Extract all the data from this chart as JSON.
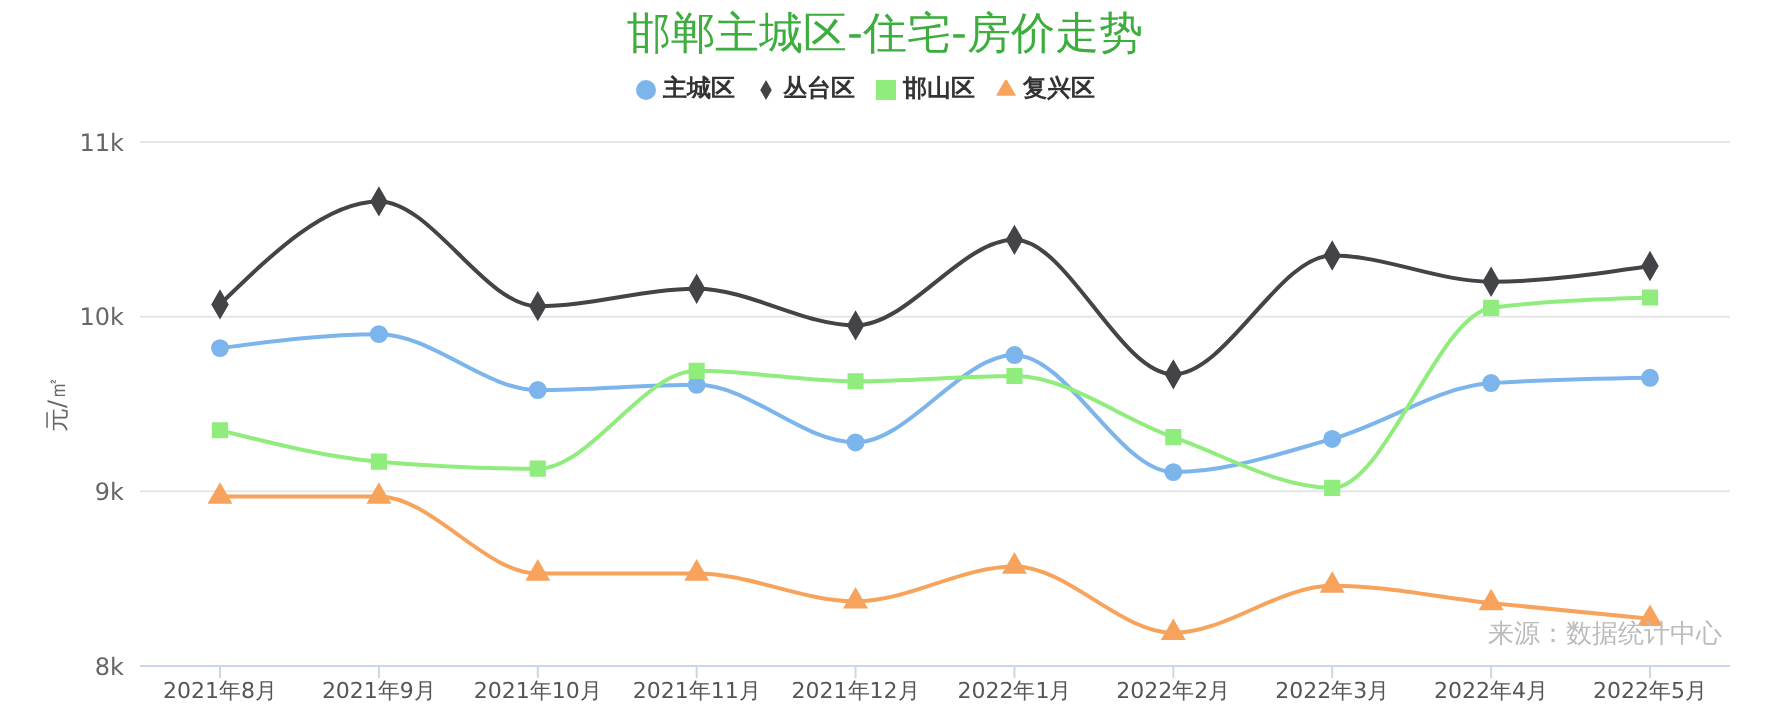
{
  "chart_data": {
    "type": "line",
    "title": "邯郸主城区-住宅-房价走势",
    "ylabel": "元/㎡",
    "categories": [
      "2021年8月",
      "2021年9月",
      "2021年10月",
      "2021年11月",
      "2021年12月",
      "2022年1月",
      "2022年2月",
      "2022年3月",
      "2022年4月",
      "2022年5月"
    ],
    "series": [
      {
        "name": "主城区",
        "color": "#7cb5ec",
        "marker": "circle",
        "values": [
          9820,
          9900,
          9580,
          9610,
          9280,
          9780,
          9110,
          9300,
          9620,
          9650
        ]
      },
      {
        "name": "丛台区",
        "color": "#434348",
        "marker": "diamond",
        "values": [
          10070,
          10660,
          10060,
          10160,
          9950,
          10440,
          9670,
          10350,
          10200,
          10290
        ]
      },
      {
        "name": "邯山区",
        "color": "#90ed7d",
        "marker": "square",
        "values": [
          9350,
          9170,
          9130,
          9690,
          9630,
          9660,
          9310,
          9020,
          10050,
          10110
        ]
      },
      {
        "name": "复兴区",
        "color": "#f7a35c",
        "marker": "triangle",
        "values": [
          8970,
          8970,
          8530,
          8530,
          8370,
          8570,
          8190,
          8460,
          8360,
          8270
        ]
      }
    ],
    "ylim": [
      8000,
      11000
    ],
    "yticks": [
      {
        "value": 8000,
        "label": "8k"
      },
      {
        "value": 9000,
        "label": "9k"
      },
      {
        "value": 10000,
        "label": "10k"
      },
      {
        "value": 11000,
        "label": "11k"
      }
    ],
    "grid": "y",
    "legend": "top",
    "line_style": "solid",
    "annotations": [
      "来源：数据统计中心"
    ]
  }
}
